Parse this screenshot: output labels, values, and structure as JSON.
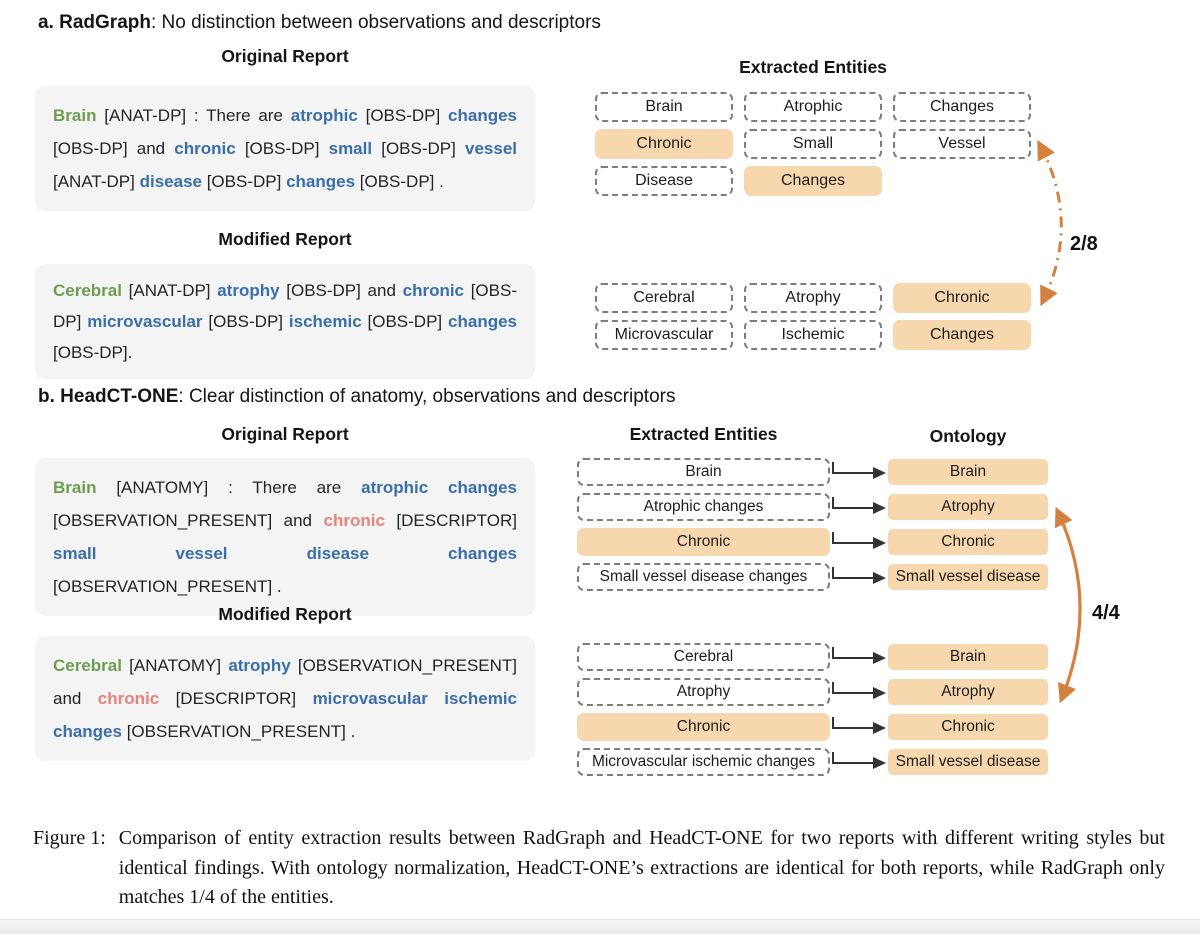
{
  "colors": {
    "anatomy_green": "#6f9c52",
    "observation_blue": "#3a6ea8",
    "descriptor_red": "#e5837d",
    "matched_fill": "#f7d8ae",
    "match_arrow_orange": "#d4813f",
    "dashed_border_gray": "#7d7d7d",
    "report_box_gray": "#f4f4f5"
  },
  "section_a": {
    "title_bold": "a. RadGraph",
    "title_rest": ":  No distinction between observations and descriptors",
    "original_label": "Original Report",
    "modified_label": "Modified Report",
    "entities_header": "Extracted Entities",
    "match_label": "2/8",
    "original_segments": [
      {
        "t": "Brain",
        "c": "anat"
      },
      {
        "t": " [ANAT-DP] : There are ",
        "c": "plain"
      },
      {
        "t": "atrophic",
        "c": "obs"
      },
      {
        "t": " [OBS-DP] ",
        "c": "plain"
      },
      {
        "t": "changes",
        "c": "obs"
      },
      {
        "t": " [OBS-DP] and ",
        "c": "plain"
      },
      {
        "t": "chronic",
        "c": "obs"
      },
      {
        "t": " [OBS-DP] ",
        "c": "plain"
      },
      {
        "t": "small",
        "c": "obs"
      },
      {
        "t": " [OBS-DP] ",
        "c": "plain"
      },
      {
        "t": "vessel",
        "c": "obs"
      },
      {
        "t": " [ANAT-DP] ",
        "c": "plain"
      },
      {
        "t": "disease",
        "c": "obs"
      },
      {
        "t": " [OBS-DP] ",
        "c": "plain"
      },
      {
        "t": "changes",
        "c": "obs"
      },
      {
        "t": " [OBS-DP] .",
        "c": "plain"
      }
    ],
    "modified_segments": [
      {
        "t": "Cerebral",
        "c": "anat"
      },
      {
        "t": " [ANAT-DP] ",
        "c": "plain"
      },
      {
        "t": "atrophy",
        "c": "obs"
      },
      {
        "t": " [OBS-DP] and ",
        "c": "plain"
      },
      {
        "t": "chronic",
        "c": "obs"
      },
      {
        "t": " [OBS-DP] ",
        "c": "plain"
      },
      {
        "t": "microvascular",
        "c": "obs"
      },
      {
        "t": " [OBS-DP] ",
        "c": "plain"
      },
      {
        "t": "ischemic",
        "c": "obs"
      },
      {
        "t": " [OBS-DP] ",
        "c": "plain"
      },
      {
        "t": "changes",
        "c": "obs"
      },
      {
        "t": " [OBS-DP].",
        "c": "plain"
      }
    ],
    "original_entities": [
      {
        "label": "Brain",
        "matched": false
      },
      {
        "label": "Atrophic",
        "matched": false
      },
      {
        "label": "Changes",
        "matched": false
      },
      {
        "label": "Chronic",
        "matched": true
      },
      {
        "label": "Small",
        "matched": false
      },
      {
        "label": "Vessel",
        "matched": false
      },
      {
        "label": "Disease",
        "matched": false
      },
      {
        "label": "Changes",
        "matched": true
      }
    ],
    "modified_entities": [
      {
        "label": "Cerebral",
        "matched": false
      },
      {
        "label": "Atrophy",
        "matched": false
      },
      {
        "label": "Chronic",
        "matched": true
      },
      {
        "label": "Microvascular",
        "matched": false
      },
      {
        "label": "Ischemic",
        "matched": false
      },
      {
        "label": "Changes",
        "matched": true
      }
    ]
  },
  "section_b": {
    "title_bold": "b. HeadCT-ONE",
    "title_rest": ": Clear distinction of anatomy, observations and descriptors",
    "original_label": "Original Report",
    "modified_label": "Modified Report",
    "entities_header": "Extracted Entities",
    "ontology_header": "Ontology",
    "match_label": "4/4",
    "original_segments": [
      {
        "t": "Brain",
        "c": "anat"
      },
      {
        "t": " [ANATOMY] : There are ",
        "c": "plain"
      },
      {
        "t": "atrophic changes",
        "c": "obs"
      },
      {
        "t": " [OBSERVATION_PRESENT] and ",
        "c": "plain"
      },
      {
        "t": "chronic",
        "c": "desc"
      },
      {
        "t": " [DESCRIPTOR] ",
        "c": "plain"
      },
      {
        "t": "small vessel disease changes",
        "c": "obs"
      },
      {
        "t": " [OBSERVATION_PRESENT] .",
        "c": "plain"
      }
    ],
    "modified_segments": [
      {
        "t": "Cerebral",
        "c": "anat"
      },
      {
        "t": " [ANATOMY] ",
        "c": "plain"
      },
      {
        "t": "atrophy",
        "c": "obs"
      },
      {
        "t": " [OBSERVATION_PRESENT] and ",
        "c": "plain"
      },
      {
        "t": "chronic",
        "c": "desc"
      },
      {
        "t": " [DESCRIPTOR] ",
        "c": "plain"
      },
      {
        "t": "microvascular ischemic changes",
        "c": "obs"
      },
      {
        "t": " [OBSERVATION_PRESENT] .",
        "c": "plain"
      }
    ],
    "original_rows": [
      {
        "entity": "Brain",
        "matched": false,
        "ontology": "Brain"
      },
      {
        "entity": "Atrophic changes",
        "matched": false,
        "ontology": "Atrophy"
      },
      {
        "entity": "Chronic",
        "matched": true,
        "ontology": "Chronic"
      },
      {
        "entity": "Small vessel disease changes",
        "matched": false,
        "ontology": "Small vessel disease"
      }
    ],
    "modified_rows": [
      {
        "entity": "Cerebral",
        "matched": false,
        "ontology": "Brain"
      },
      {
        "entity": "Atrophy",
        "matched": false,
        "ontology": "Atrophy"
      },
      {
        "entity": "Chronic",
        "matched": true,
        "ontology": "Chronic"
      },
      {
        "entity": "Microvascular ischemic changes",
        "matched": false,
        "ontology": "Small vessel disease"
      }
    ]
  },
  "caption": {
    "label": "Figure 1:",
    "text": "Comparison of entity extraction results between RadGraph and HeadCT-ONE for two reports with different writing styles but identical findings. With ontology normalization, HeadCT-ONE’s extractions are identical for both reports, while RadGraph only matches 1/4 of the entities."
  }
}
